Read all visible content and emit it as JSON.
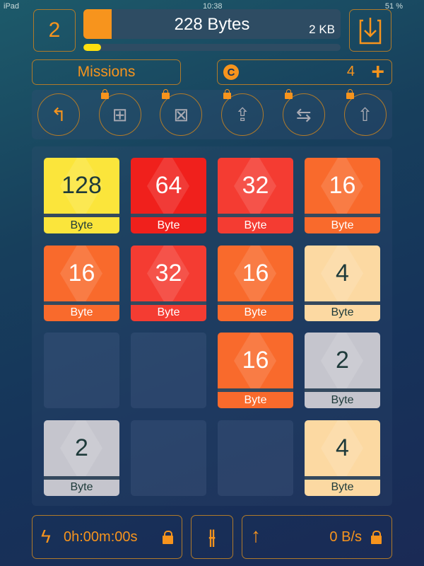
{
  "status_bar": {
    "device": "iPad",
    "time": "10:38",
    "battery": "51 %"
  },
  "header": {
    "level": "2",
    "bytes_label": "228 Bytes",
    "capacity_label": "2 KB",
    "bytes_fill_percent": 11,
    "progress_percent": 7,
    "download_icon": "download-tray-icon"
  },
  "missions_label": "Missions",
  "coins": {
    "icon_letter": "C",
    "count": "4",
    "plus": "+"
  },
  "tools": [
    {
      "name": "undo",
      "icon": "↰",
      "locked": false
    },
    {
      "name": "add-tile",
      "icon": "⊞",
      "locked": true
    },
    {
      "name": "remove-tile",
      "icon": "⊠",
      "locked": true
    },
    {
      "name": "upload",
      "icon": "⇪",
      "locked": true
    },
    {
      "name": "swap",
      "icon": "⇆",
      "locked": true
    },
    {
      "name": "export",
      "icon": "⇧",
      "locked": true
    }
  ],
  "board": {
    "rows": [
      [
        {
          "value": "128",
          "unit": "Byte",
          "color": "#fbe53b",
          "text": "#1e3a3a"
        },
        {
          "value": "64",
          "unit": "Byte",
          "color": "#f0201c",
          "text": "#ffffff"
        },
        {
          "value": "32",
          "unit": "Byte",
          "color": "#f43c32",
          "text": "#ffffff"
        },
        {
          "value": "16",
          "unit": "Byte",
          "color": "#f96a2c",
          "text": "#ffffff"
        }
      ],
      [
        {
          "value": "16",
          "unit": "Byte",
          "color": "#f96a2c",
          "text": "#ffffff"
        },
        {
          "value": "32",
          "unit": "Byte",
          "color": "#f43c32",
          "text": "#ffffff"
        },
        {
          "value": "16",
          "unit": "Byte",
          "color": "#f96a2c",
          "text": "#ffffff"
        },
        {
          "value": "4",
          "unit": "Byte",
          "color": "#fcd9a2",
          "text": "#1e3a3a"
        }
      ],
      [
        null,
        null,
        {
          "value": "16",
          "unit": "Byte",
          "color": "#f96a2c",
          "text": "#ffffff"
        },
        {
          "value": "2",
          "unit": "Byte",
          "color": "#c5c5cd",
          "text": "#1e3a3a"
        }
      ],
      [
        {
          "value": "2",
          "unit": "Byte",
          "color": "#c5c5cd",
          "text": "#1e3a3a"
        },
        null,
        null,
        {
          "value": "4",
          "unit": "Byte",
          "color": "#fcd9a2",
          "text": "#1e3a3a"
        }
      ]
    ]
  },
  "footer": {
    "timer": "0h:00m:00s",
    "settings_icon": "sliders-icon",
    "speed": "0 B/s"
  },
  "accent": "#f7941d"
}
